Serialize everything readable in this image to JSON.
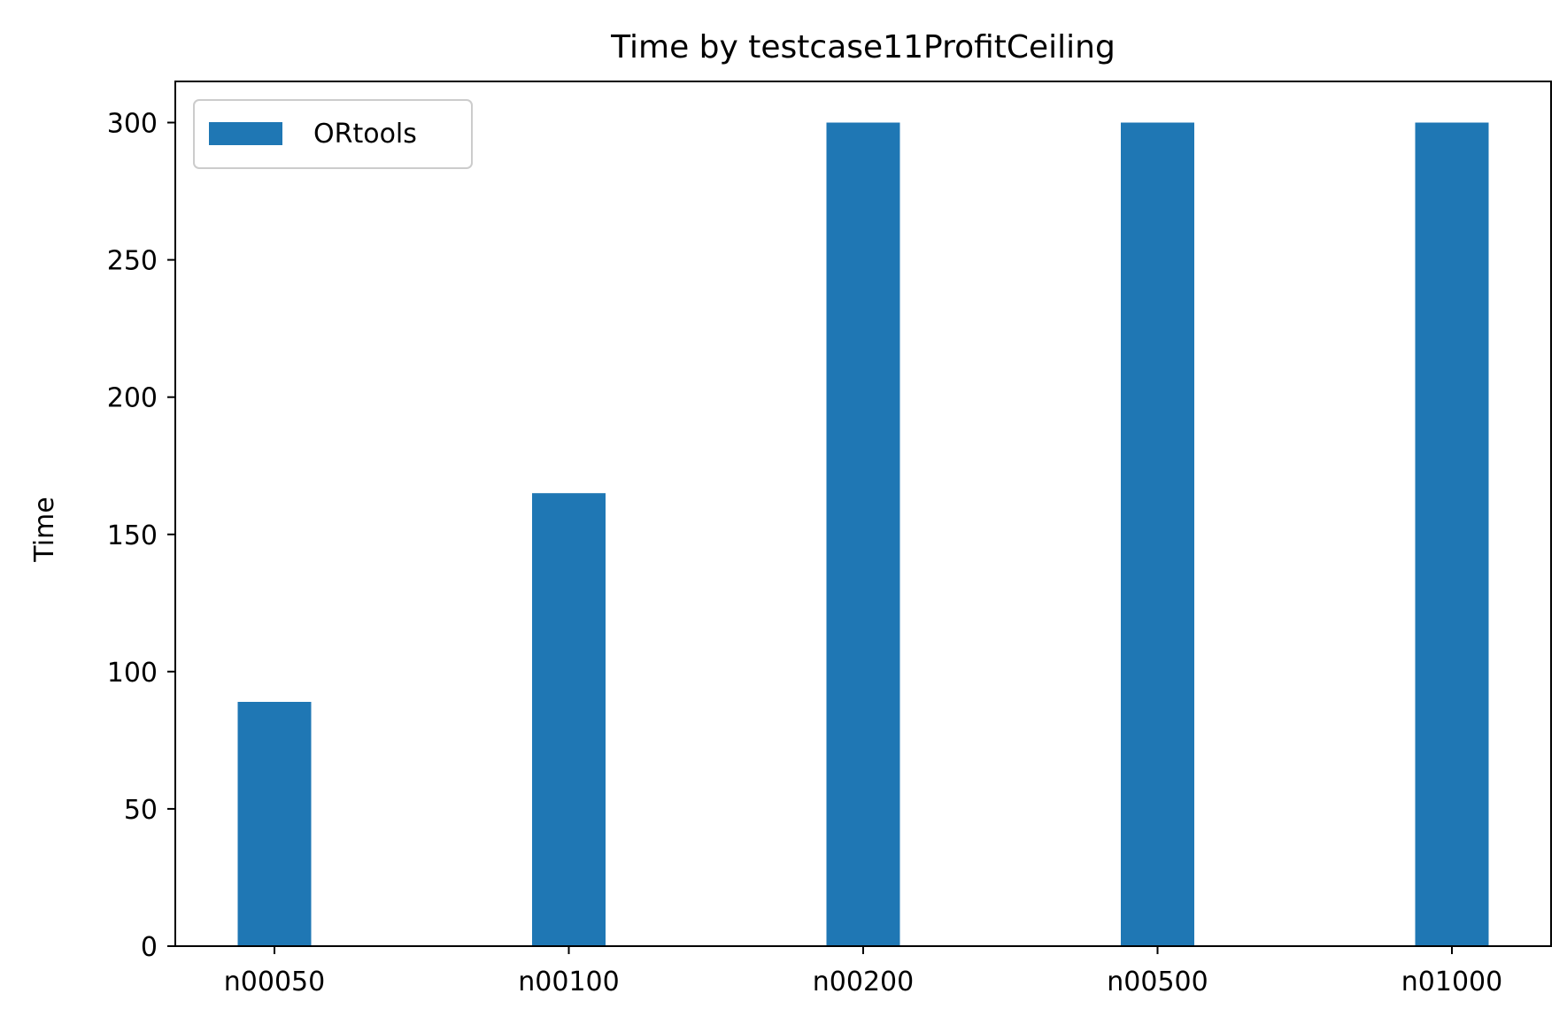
{
  "chart_data": {
    "type": "bar",
    "title": "Time by testcase11ProfitCeiling",
    "xlabel": "",
    "ylabel": "Time",
    "categories": [
      "n00050",
      "n00100",
      "n00200",
      "n00500",
      "n01000"
    ],
    "series": [
      {
        "name": "ORtools",
        "color": "#1f77b4",
        "values": [
          89,
          165,
          300,
          300,
          300
        ]
      }
    ],
    "ylim": [
      0,
      315
    ],
    "yticks": [
      0,
      50,
      100,
      150,
      200,
      250,
      300
    ],
    "grid": false,
    "legend_position": "top-left"
  }
}
